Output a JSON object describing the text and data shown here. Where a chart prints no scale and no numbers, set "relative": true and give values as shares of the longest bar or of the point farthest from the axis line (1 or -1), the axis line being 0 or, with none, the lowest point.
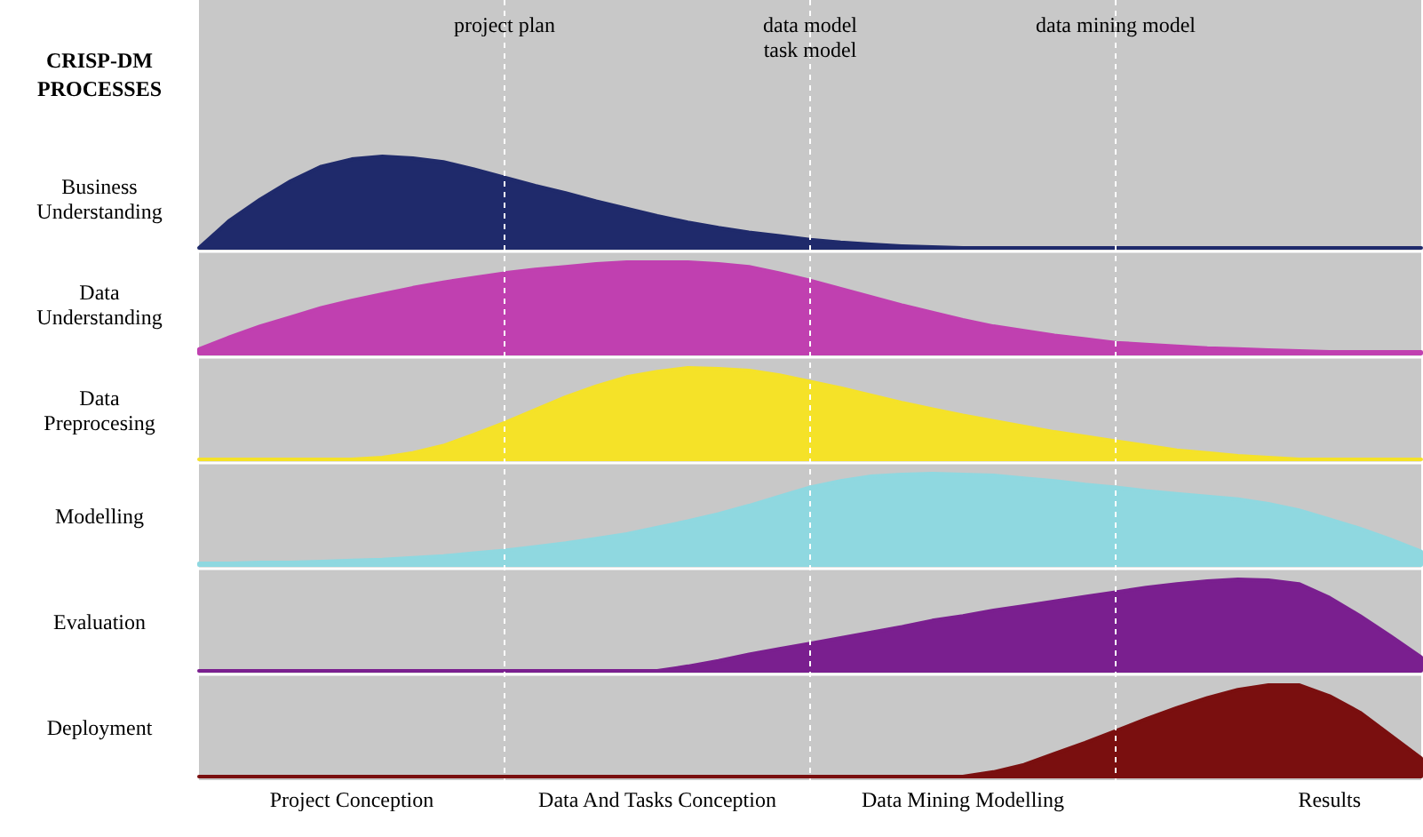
{
  "chart_data": [
    {
      "type": "area",
      "title": "CRISP-DM PROCESSES",
      "relative": true,
      "grid": "x",
      "line_style": "dashed",
      "categories": [
        null,
        null,
        null,
        null,
        null,
        null,
        null,
        null,
        null,
        null,
        "project plan",
        null,
        null,
        null,
        null,
        null,
        null,
        null,
        null,
        null,
        "data model\ntask model",
        null,
        null,
        null,
        null,
        null,
        null,
        null,
        null,
        null,
        "data mining model",
        null,
        null,
        null,
        null,
        null,
        null,
        null,
        null,
        null,
        null
      ],
      "series": [
        {
          "name": "Business Understanding",
          "color": "#1f2a6b",
          "values": [
            0,
            0.3,
            0.53,
            0.73,
            0.89,
            0.97,
            1,
            0.98,
            0.94,
            0.86,
            0.77,
            0.68,
            0.6,
            0.51,
            0.43,
            0.35,
            0.28,
            0.22,
            0.17,
            0.13,
            0.09,
            0.06,
            0.04,
            0.02,
            0.01,
            0,
            0,
            0,
            0,
            0,
            0,
            0,
            0,
            0,
            0,
            0,
            0,
            0,
            0,
            0,
            0
          ]
        }
      ]
    },
    {
      "type": "area",
      "relative": true,
      "categories": [
        null,
        null,
        null,
        null,
        null,
        null,
        null,
        null,
        null,
        null,
        null,
        null,
        null,
        null,
        null,
        null,
        null,
        null,
        null,
        null,
        null,
        null,
        null,
        null,
        null,
        null,
        null,
        null,
        null,
        null,
        null,
        null,
        null,
        null,
        null,
        null,
        null,
        null,
        null,
        null,
        null
      ],
      "series": [
        {
          "name": "Data Understanding",
          "color": "#c040b0",
          "values": [
            0.05,
            0.18,
            0.3,
            0.4,
            0.5,
            0.58,
            0.65,
            0.72,
            0.78,
            0.83,
            0.88,
            0.92,
            0.95,
            0.98,
            1,
            1,
            1,
            0.98,
            0.95,
            0.88,
            0.8,
            0.71,
            0.62,
            0.53,
            0.45,
            0.37,
            0.3,
            0.25,
            0.2,
            0.16,
            0.12,
            0.1,
            0.08,
            0.06,
            0.05,
            0.04,
            0.03,
            0.02,
            0.02,
            0.02,
            0.02
          ]
        }
      ]
    },
    {
      "type": "area",
      "relative": true,
      "categories": [
        null,
        null,
        null,
        null,
        null,
        null,
        null,
        null,
        null,
        null,
        null,
        null,
        null,
        null,
        null,
        null,
        null,
        null,
        null,
        null,
        null,
        null,
        null,
        null,
        null,
        null,
        null,
        null,
        null,
        null,
        null,
        null,
        null,
        null,
        null,
        null,
        null,
        null,
        null,
        null,
        null
      ],
      "series": [
        {
          "name": "Data Preprocesing",
          "color": "#f5e228",
          "values": [
            0,
            0,
            0,
            0,
            0,
            0,
            0.02,
            0.07,
            0.15,
            0.27,
            0.4,
            0.54,
            0.68,
            0.8,
            0.9,
            0.96,
            1,
            0.99,
            0.97,
            0.92,
            0.85,
            0.78,
            0.7,
            0.62,
            0.55,
            0.48,
            0.42,
            0.36,
            0.3,
            0.25,
            0.2,
            0.15,
            0.1,
            0.07,
            0.04,
            0.02,
            0,
            0,
            0,
            0,
            0
          ]
        }
      ]
    },
    {
      "type": "area",
      "relative": true,
      "categories": [
        null,
        null,
        null,
        null,
        null,
        null,
        null,
        null,
        null,
        null,
        null,
        null,
        null,
        null,
        null,
        null,
        null,
        null,
        null,
        null,
        null,
        null,
        null,
        null,
        null,
        null,
        null,
        null,
        null,
        null,
        null,
        null,
        null,
        null,
        null,
        null,
        null,
        null,
        null,
        null,
        null
      ],
      "series": [
        {
          "name": "Modelling",
          "color": "#8fd8e0",
          "values": [
            0.02,
            0.02,
            0.03,
            0.03,
            0.04,
            0.05,
            0.06,
            0.08,
            0.1,
            0.13,
            0.16,
            0.2,
            0.24,
            0.29,
            0.34,
            0.41,
            0.48,
            0.56,
            0.65,
            0.75,
            0.85,
            0.92,
            0.97,
            0.99,
            1,
            0.99,
            0.98,
            0.95,
            0.92,
            0.88,
            0.85,
            0.81,
            0.78,
            0.75,
            0.72,
            0.67,
            0.6,
            0.5,
            0.4,
            0.28,
            0.15
          ]
        }
      ]
    },
    {
      "type": "area",
      "relative": true,
      "categories": [
        null,
        null,
        null,
        null,
        null,
        null,
        null,
        null,
        null,
        null,
        null,
        null,
        null,
        null,
        null,
        null,
        null,
        null,
        null,
        null,
        null,
        null,
        null,
        null,
        null,
        null,
        null,
        null,
        null,
        null,
        null,
        null,
        null,
        null,
        null,
        null,
        null,
        null,
        null,
        null,
        null
      ],
      "series": [
        {
          "name": "Evaluation",
          "color": "#7a1f8f",
          "values": [
            0,
            0,
            0,
            0,
            0,
            0,
            0,
            0,
            0,
            0,
            0,
            0,
            0,
            0,
            0,
            0,
            0.05,
            0.11,
            0.18,
            0.24,
            0.3,
            0.36,
            0.42,
            0.48,
            0.55,
            0.6,
            0.66,
            0.71,
            0.76,
            0.81,
            0.86,
            0.91,
            0.95,
            0.98,
            1,
            0.99,
            0.95,
            0.8,
            0.6,
            0.38,
            0.15
          ]
        }
      ]
    },
    {
      "type": "area",
      "relative": true,
      "categories": [
        null,
        null,
        null,
        null,
        null,
        "Project Conception",
        null,
        null,
        null,
        null,
        null,
        null,
        null,
        null,
        null,
        "Data And Tasks Conception",
        null,
        null,
        null,
        null,
        null,
        null,
        null,
        null,
        null,
        "Data Mining Modelling",
        null,
        null,
        null,
        null,
        null,
        null,
        null,
        null,
        null,
        null,
        null,
        "Results",
        null,
        null,
        null
      ],
      "series": [
        {
          "name": "Deployment",
          "color": "#7a0f0f",
          "values": [
            0,
            0,
            0,
            0,
            0,
            0,
            0,
            0,
            0,
            0,
            0,
            0,
            0,
            0,
            0,
            0,
            0,
            0,
            0,
            0,
            0,
            0,
            0,
            0,
            0,
            0,
            0.05,
            0.13,
            0.25,
            0.37,
            0.5,
            0.63,
            0.75,
            0.86,
            0.95,
            1,
            1,
            0.88,
            0.7,
            0.45,
            0.2
          ]
        }
      ]
    }
  ]
}
